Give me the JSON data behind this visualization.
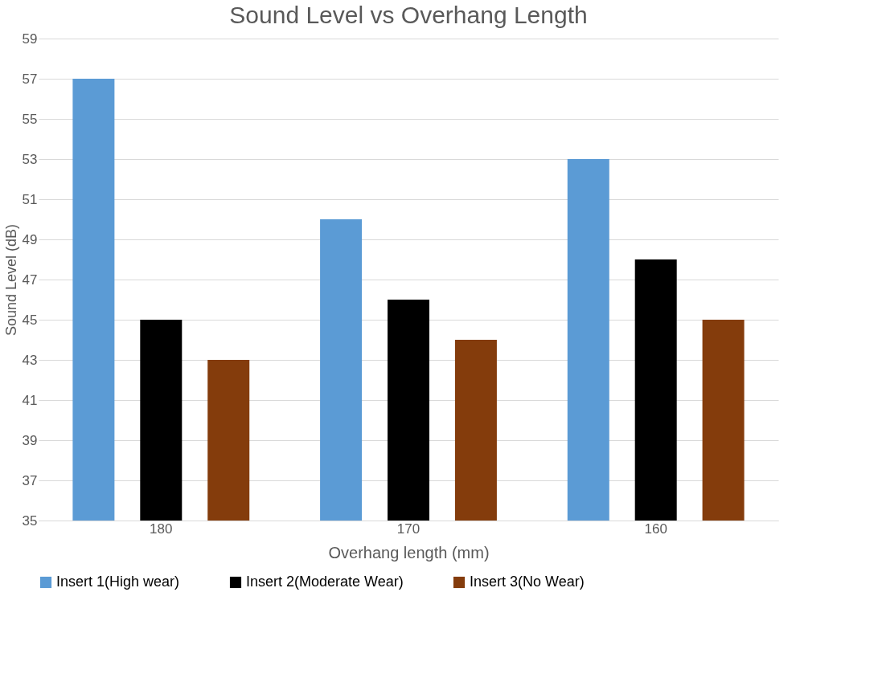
{
  "chart_data": {
    "type": "bar",
    "title": "Sound Level vs Overhang Length",
    "xlabel": "Overhang length (mm)",
    "ylabel": "Sound Level (dB)",
    "categories": [
      "180",
      "170",
      "160"
    ],
    "series": [
      {
        "name": "Insert 1(High wear)",
        "color": "#5b9bd5",
        "values": [
          57,
          50,
          53
        ]
      },
      {
        "name": "Insert 2(Moderate Wear)",
        "color": "#000000",
        "values": [
          45,
          46,
          48
        ]
      },
      {
        "name": "Insert 3(No Wear)",
        "color": "#843c0c",
        "values": [
          43,
          44,
          45
        ]
      }
    ],
    "ylim": [
      35,
      59
    ],
    "yticks": [
      35,
      37,
      39,
      41,
      43,
      45,
      47,
      49,
      51,
      53,
      55,
      57,
      59
    ],
    "grid": "y",
    "legend": "bottom"
  }
}
